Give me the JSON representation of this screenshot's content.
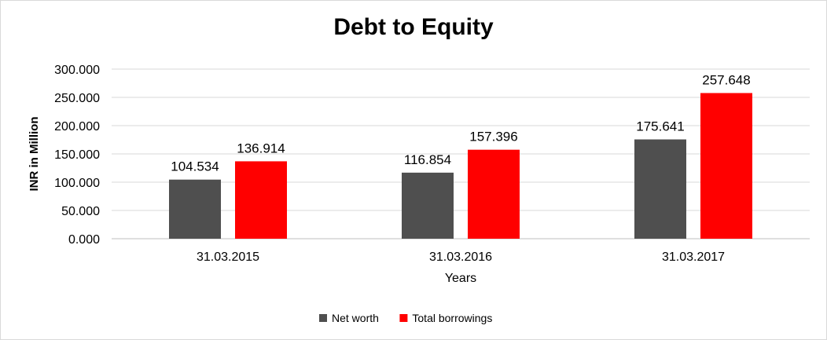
{
  "chart_data": {
    "type": "bar",
    "title": "Debt to Equity",
    "xlabel": "Years",
    "ylabel": "INR in Million",
    "categories": [
      "31.03.2015",
      "31.03.2016",
      "31.03.2017"
    ],
    "series": [
      {
        "name": "Net worth",
        "color": "#4f4f4f",
        "values": [
          104.534,
          116.854,
          175.641
        ],
        "labels": [
          "104.534",
          "116.854",
          "175.641"
        ]
      },
      {
        "name": "Total borrowings",
        "color": "#ff0000",
        "values": [
          136.914,
          157.396,
          257.648
        ],
        "labels": [
          "136.914",
          "157.396",
          "257.648"
        ]
      }
    ],
    "ylim": [
      0,
      300
    ],
    "yticks": [
      "0.000",
      "50.000",
      "100.000",
      "150.000",
      "200.000",
      "250.000",
      "300.000"
    ],
    "grid": true,
    "legend_position": "bottom"
  }
}
